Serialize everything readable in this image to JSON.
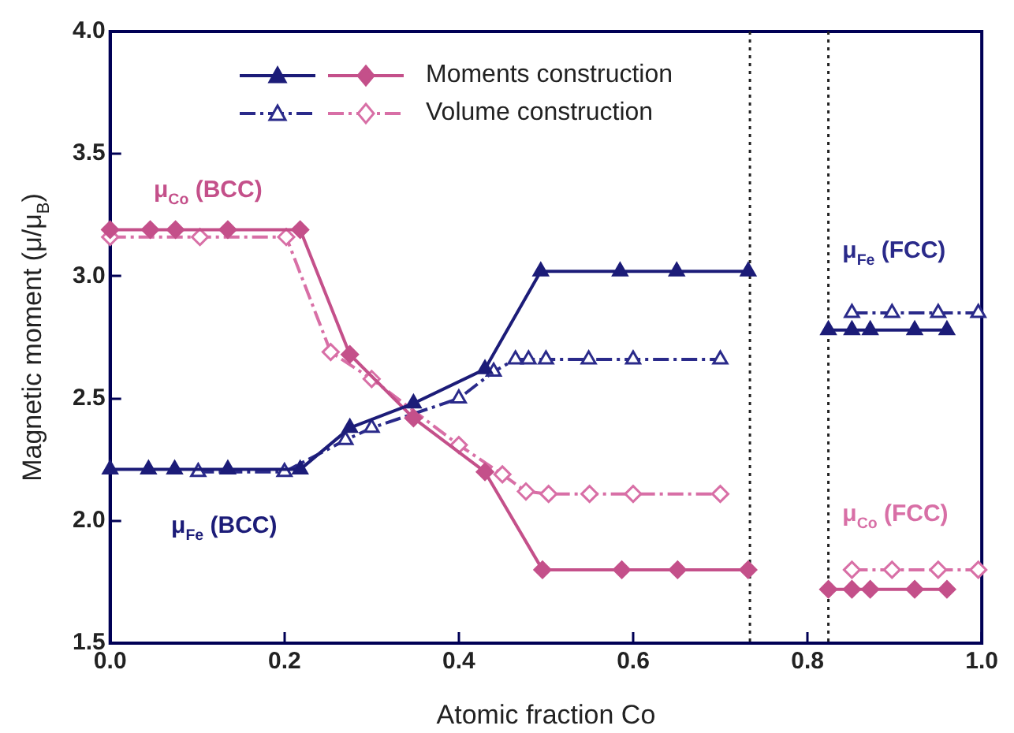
{
  "chart_data": {
    "type": "line",
    "xlabel": "Atomic fraction Co",
    "ylabel": "Magnetic moment (μ/μ$_{B}$)",
    "xlim": [
      0,
      1
    ],
    "xticks": [
      {
        "value": 0,
        "label": "0.0"
      },
      0.2,
      0.4,
      0.6,
      0.8,
      {
        "value": 1,
        "label": "1.0"
      }
    ],
    "ylim": [
      1.5,
      4
    ],
    "yticks": [
      1.5,
      {
        "value": 2,
        "label": "2.0"
      },
      2.5,
      {
        "value": 3,
        "label": "3.0"
      },
      3.5,
      {
        "value": 4,
        "label": "4.0"
      }
    ],
    "grid": false,
    "legend": "top left",
    "series": [
      {
        "color": "#1c1c78",
        "marker": "triangle",
        "line_style": "solid",
        "x": [
          0,
          0.044,
          0.074,
          0.135,
          0.218,
          0.275,
          0.348,
          0.43,
          0.494,
          0.585,
          0.65,
          0.732,
          0.78,
          0.824,
          0.851,
          0.872,
          0.923,
          0.96
        ],
        "values": [
          2.21,
          2.21,
          2.21,
          2.21,
          2.21,
          2.38,
          2.48,
          2.62,
          3.02,
          3.02,
          3.02,
          3.02,
          null,
          2.78,
          2.78,
          2.78,
          2.78,
          2.78
        ]
      },
      {
        "name": "Moments construction",
        "color": "#c4508a",
        "marker": "diamond",
        "line_style": "solid",
        "x": [
          0,
          0.046,
          0.075,
          0.135,
          0.218,
          0.275,
          0.348,
          0.43,
          0.496,
          0.587,
          0.651,
          0.732,
          0.78,
          0.824,
          0.851,
          0.872,
          0.923,
          0.96
        ],
        "values": [
          3.19,
          3.19,
          3.19,
          3.19,
          3.19,
          2.68,
          2.42,
          2.2,
          1.8,
          1.8,
          1.8,
          1.8,
          null,
          1.72,
          1.72,
          1.72,
          1.72,
          1.72
        ]
      },
      {
        "color": "#2a2a8a",
        "marker": "triangle",
        "line_style": "dashed",
        "x": [
          0.101,
          0.2,
          0.27,
          0.3,
          0.4,
          0.44,
          0.465,
          0.48,
          0.5,
          0.549,
          0.6,
          0.7,
          0.78,
          0.851,
          0.897,
          0.95,
          0.996
        ],
        "values": [
          2.2,
          2.2,
          2.33,
          2.38,
          2.5,
          2.61,
          2.66,
          2.66,
          2.66,
          2.66,
          2.66,
          2.66,
          null,
          2.85,
          2.85,
          2.85,
          2.85
        ]
      },
      {
        "name": "Volume construction",
        "color": "#d86fa6",
        "marker": "diamond",
        "line_style": "dashed",
        "x": [
          0,
          0.103,
          0.202,
          0.253,
          0.3,
          0.4,
          0.45,
          0.477,
          0.503,
          0.55,
          0.6,
          0.7,
          0.78,
          0.851,
          0.897,
          0.95,
          0.996
        ],
        "values": [
          3.16,
          3.16,
          3.16,
          2.69,
          2.58,
          2.31,
          2.19,
          2.12,
          2.11,
          2.11,
          2.11,
          2.11,
          null,
          1.8,
          1.8,
          1.8,
          1.8
        ]
      }
    ],
    "ref_lines": [
      {
        "axis": "x",
        "value": 0.734,
        "line_style": "dotted",
        "color": "#222222"
      },
      {
        "axis": "x",
        "value": 0.824,
        "line_style": "dotted",
        "color": "#222222"
      }
    ],
    "annotations": [
      "μ$_{Co}$ (BCC)",
      "μ$_{Fe}$ (BCC)",
      "μ$_{Fe}$ (FCC)",
      "μ$_{Co}$ (FCC)"
    ]
  }
}
